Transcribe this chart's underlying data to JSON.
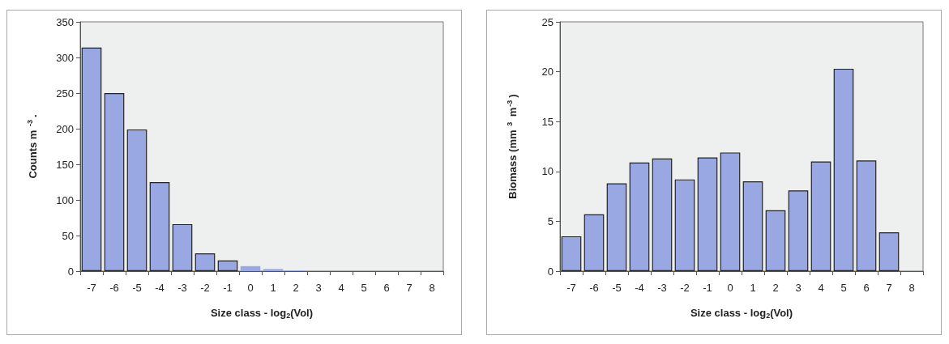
{
  "chart_data": [
    {
      "type": "bar",
      "xlabel": "Size class - log$_{2}$(Vol)",
      "ylabel": "Counts m $^{-3}$.",
      "categories": [
        "-7",
        "-6",
        "-5",
        "-4",
        "-3",
        "-2",
        "-1",
        "0",
        "1",
        "2",
        "3",
        "4",
        "5",
        "6",
        "7",
        "8"
      ],
      "values": [
        314,
        250,
        199,
        125,
        66,
        25,
        15,
        7,
        3,
        1,
        0,
        0,
        0,
        0,
        0,
        0
      ],
      "color": "#99a8e2",
      "ylim": [
        0,
        350
      ],
      "yticks": [
        0,
        50,
        100,
        150,
        200,
        250,
        300,
        350
      ]
    },
    {
      "type": "bar",
      "xlabel": "Size class - log$_{2}$(Vol)",
      "ylabel": "Biomass (mm $^{3}$ m$^{-3}$)",
      "categories": [
        "-7",
        "-6",
        "-5",
        "-4",
        "-3",
        "-2",
        "-1",
        "0",
        "1",
        "2",
        "3",
        "4",
        "5",
        "6",
        "7",
        "8"
      ],
      "values": [
        3.5,
        5.7,
        8.8,
        10.9,
        11.3,
        9.2,
        11.4,
        11.9,
        9.0,
        6.1,
        8.1,
        11.0,
        20.3,
        11.1,
        3.9,
        0
      ],
      "color": "#99a8e2",
      "ylim": [
        0,
        25
      ],
      "yticks": [
        0,
        5,
        10,
        15,
        20,
        25
      ]
    }
  ]
}
